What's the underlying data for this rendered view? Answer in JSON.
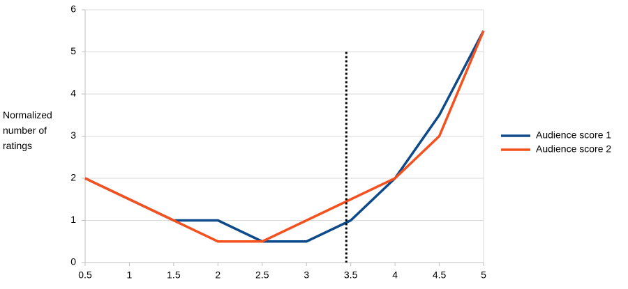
{
  "chart_data": {
    "type": "line",
    "ylabel": "Normalized number of ratings",
    "x": [
      0.5,
      1,
      1.5,
      2,
      2.5,
      3,
      3.5,
      4,
      4.5,
      5
    ],
    "series": [
      {
        "name": "Audience score 1",
        "color": "#0e4a8a",
        "values": [
          2,
          1.5,
          1,
          1,
          0.5,
          0.5,
          1,
          2,
          3.5,
          5.5
        ]
      },
      {
        "name": "Audience score 2",
        "color": "#f4511e",
        "values": [
          2,
          1.5,
          1,
          0.5,
          0.5,
          1,
          1.5,
          2,
          3,
          5.5
        ]
      }
    ],
    "xlim": [
      0.5,
      5
    ],
    "xticks": [
      0.5,
      1,
      1.5,
      2,
      2.5,
      3,
      3.5,
      4,
      4.5,
      5
    ],
    "ylim": [
      0,
      6
    ],
    "yticks": [
      0,
      1,
      2,
      3,
      4,
      5,
      6
    ],
    "grid": true,
    "legend": "right",
    "reference_line_x": 3.45
  }
}
